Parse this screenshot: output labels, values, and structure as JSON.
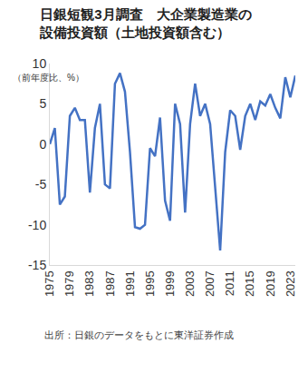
{
  "chart_data": {
    "type": "line",
    "title": "日銀短観3月調査　大企業製造業の\n設備投資額（土地投資額含む）",
    "y_label": "（前年度比、%）",
    "source": "出所：日銀のデータをもとに東洋証券作成",
    "x": [
      1975,
      1976,
      1977,
      1978,
      1979,
      1980,
      1981,
      1982,
      1983,
      1984,
      1985,
      1986,
      1987,
      1988,
      1989,
      1990,
      1991,
      1992,
      1993,
      1994,
      1995,
      1996,
      1997,
      1998,
      1999,
      2000,
      2001,
      2002,
      2003,
      2004,
      2005,
      2006,
      2007,
      2008,
      2009,
      2010,
      2011,
      2012,
      2013,
      2014,
      2015,
      2016,
      2017,
      2018,
      2019,
      2020,
      2021,
      2022,
      2023,
      2024
    ],
    "values": [
      0,
      2,
      -7.5,
      -6.5,
      3.5,
      4.5,
      3,
      3,
      -6,
      2,
      5,
      -5,
      -5.5,
      7.5,
      8.8,
      6.5,
      -1,
      -10.3,
      -10.5,
      -10,
      -0.5,
      -1.5,
      3.3,
      -7,
      -9.5,
      5,
      2.5,
      -8.5,
      2.5,
      7.5,
      3.5,
      5,
      2.5,
      -5,
      -13.2,
      -1,
      4.2,
      3.5,
      -0.7,
      3.5,
      5,
      3,
      5.3,
      4.8,
      6.2,
      4.5,
      3.2,
      8.3,
      5.8,
      8.5
    ],
    "color": "#4472c4",
    "xlim": [
      1975,
      2024
    ],
    "xticks": [
      1975,
      1979,
      1983,
      1987,
      1991,
      1995,
      1999,
      2003,
      2007,
      2011,
      2015,
      2019,
      2023
    ],
    "ylim": [
      -15,
      10
    ],
    "yticks": [
      -15,
      -10,
      -5,
      0,
      5,
      10
    ],
    "grid": false
  }
}
